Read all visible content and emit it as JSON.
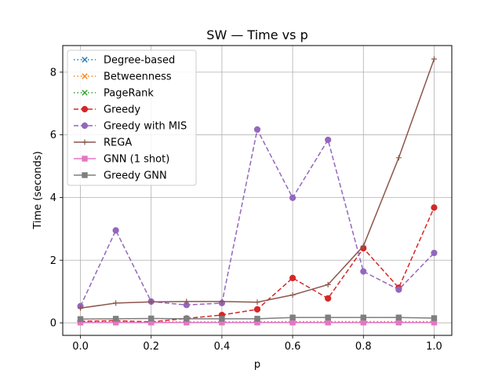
{
  "chart_data": {
    "type": "line",
    "title": "SW — Time vs p",
    "xlabel": "p",
    "ylabel": "Time (seconds)",
    "xlim": [
      -0.05,
      1.05
    ],
    "ylim": [
      -0.4,
      8.85
    ],
    "grid": true,
    "legend_position": "top-left",
    "x": [
      0.0,
      0.1,
      0.2,
      0.3,
      0.4,
      0.5,
      0.6,
      0.7,
      0.8,
      0.9,
      1.0
    ],
    "x_ticks": [
      0.0,
      0.2,
      0.4,
      0.6,
      0.8,
      1.0
    ],
    "x_tick_labels": [
      "0.0",
      "0.2",
      "0.4",
      "0.6",
      "0.8",
      "1.0"
    ],
    "y_ticks": [
      0,
      2,
      4,
      6,
      8
    ],
    "y_tick_labels": [
      "0",
      "2",
      "4",
      "6",
      "8"
    ],
    "series": [
      {
        "name": "Degree-based",
        "color": "#1f77b4",
        "linestyle": "dotted",
        "marker": "x",
        "values": [
          0.02,
          0.02,
          0.02,
          0.02,
          0.02,
          0.02,
          0.02,
          0.02,
          0.02,
          0.02,
          0.02
        ]
      },
      {
        "name": "Betweenness",
        "color": "#ff7f0e",
        "linestyle": "dotted",
        "marker": "x",
        "values": [
          0.03,
          0.03,
          0.03,
          0.03,
          0.03,
          0.03,
          0.04,
          0.04,
          0.04,
          0.04,
          0.04
        ]
      },
      {
        "name": "PageRank",
        "color": "#2ca02c",
        "linestyle": "dotted",
        "marker": "x",
        "values": [
          0.02,
          0.02,
          0.02,
          0.02,
          0.02,
          0.02,
          0.02,
          0.02,
          0.02,
          0.02,
          0.02
        ]
      },
      {
        "name": "Greedy",
        "color": "#d62728",
        "linestyle": "dashed",
        "marker": "circle",
        "values": [
          0.05,
          0.07,
          0.03,
          0.14,
          0.25,
          0.43,
          1.43,
          0.78,
          2.38,
          1.12,
          3.68
        ]
      },
      {
        "name": "Greedy with MIS",
        "color": "#9467bd",
        "linestyle": "dashed",
        "marker": "circle",
        "values": [
          0.53,
          2.95,
          0.68,
          0.57,
          0.63,
          6.17,
          3.99,
          5.84,
          1.64,
          1.06,
          2.23
        ]
      },
      {
        "name": "REGA",
        "color": "#8c564b",
        "linestyle": "solid",
        "marker": "plus",
        "values": [
          0.47,
          0.63,
          0.67,
          0.68,
          0.68,
          0.66,
          0.89,
          1.22,
          2.45,
          5.27,
          8.42
        ]
      },
      {
        "name": "GNN (1 shot)",
        "color": "#e377c2",
        "linestyle": "solid",
        "marker": "square",
        "values": [
          0.01,
          0.01,
          0.01,
          0.01,
          0.01,
          0.01,
          0.01,
          0.01,
          0.01,
          0.01,
          0.01
        ]
      },
      {
        "name": "Greedy GNN",
        "color": "#7f7f7f",
        "linestyle": "solid",
        "marker": "square",
        "values": [
          0.12,
          0.13,
          0.14,
          0.13,
          0.13,
          0.13,
          0.17,
          0.17,
          0.17,
          0.17,
          0.15
        ]
      }
    ]
  }
}
